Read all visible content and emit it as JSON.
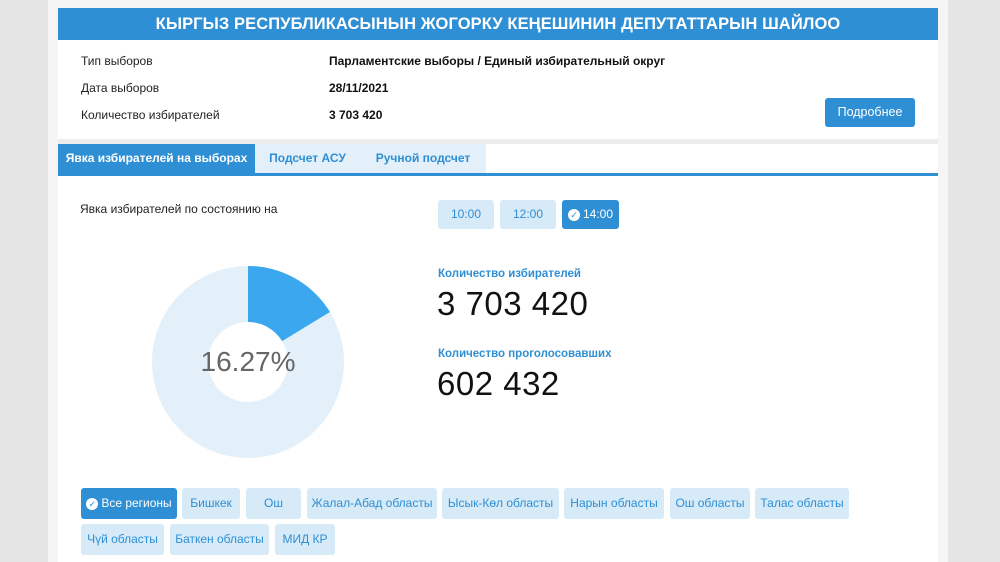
{
  "header": {
    "title": "КЫРГЫЗ РЕСПУБЛИКАСЫНЫН ЖОГОРКУ КЕҢЕШИНИН ДЕПУТАТТАРЫН ШАЙЛОО"
  },
  "info": {
    "type_label": "Тип выборов",
    "type_value": "Парламентские выборы / Единый избирательный округ",
    "date_label": "Дата выборов",
    "date_value": "28/11/2021",
    "voters_label": "Количество избирателей",
    "voters_value": "3 703 420",
    "more_button": "Подробнее"
  },
  "tabs": [
    {
      "label": "Явка избирателей на выборах",
      "active": true
    },
    {
      "label": "Подсчет АСУ",
      "active": false
    },
    {
      "label": "Ручной подсчет",
      "active": false
    }
  ],
  "turnout": {
    "label": "Явка избирателей по состоянию на",
    "times": [
      {
        "label": "10:00",
        "active": false
      },
      {
        "label": "12:00",
        "active": false
      },
      {
        "label": "14:00",
        "active": true
      }
    ],
    "percent_text": "16.27%",
    "percent_value": 16.27,
    "voters_label": "Количество избирателей",
    "voters_value": "3 703 420",
    "voted_label": "Количество проголосовавших",
    "voted_value": "602 432"
  },
  "colors": {
    "accent": "#2e8fd4",
    "donut_filled": "#3aa7ee",
    "donut_rest": "#e3f0fa"
  },
  "regions": [
    {
      "label": "Все регионы",
      "active": true
    },
    {
      "label": "Бишкек",
      "active": false
    },
    {
      "label": "Ош",
      "active": false
    },
    {
      "label": "Жалал-Абад областы",
      "active": false
    },
    {
      "label": "Ысык-Көл областы",
      "active": false
    },
    {
      "label": "Нарын областы",
      "active": false
    },
    {
      "label": "Ош областы",
      "active": false
    },
    {
      "label": "Талас областы",
      "active": false
    },
    {
      "label": "Чүй областы",
      "active": false
    },
    {
      "label": "Баткен областы",
      "active": false
    },
    {
      "label": "МИД КР",
      "active": false
    }
  ]
}
